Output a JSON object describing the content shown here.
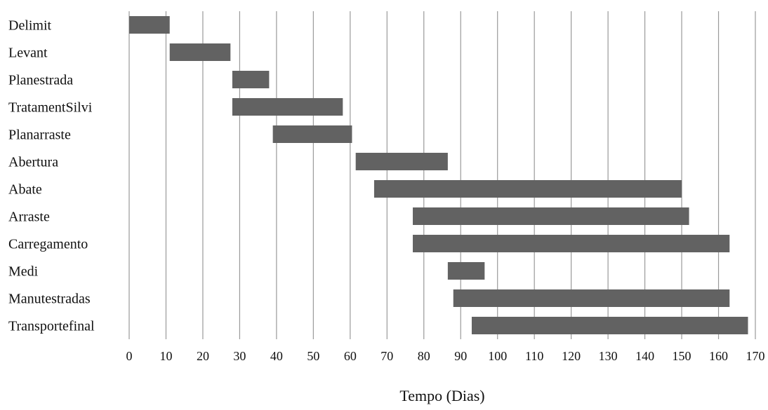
{
  "chart_data": {
    "type": "bar",
    "orientation": "horizontal",
    "subtype": "gantt",
    "title": "",
    "xlabel": "Tempo (Dias)",
    "ylabel": "",
    "xlim": [
      0,
      170
    ],
    "x_ticks": [
      0,
      10,
      20,
      30,
      40,
      50,
      60,
      70,
      80,
      90,
      100,
      110,
      120,
      130,
      140,
      150,
      160,
      170
    ],
    "grid": "vertical",
    "legend": "none",
    "bar_color": "#626262",
    "categories": [
      "Delimit",
      "Levant",
      "Planestrada",
      "TratamentSilvi",
      "Planarraste",
      "Abertura",
      "Abate",
      "Arraste",
      "Carregamento",
      "Medi",
      "Manutestradas",
      "Transportefinal"
    ],
    "tasks": [
      {
        "name": "Delimit",
        "start": 0,
        "end": 11
      },
      {
        "name": "Levant",
        "start": 11,
        "end": 27.5
      },
      {
        "name": "Planestrada",
        "start": 28,
        "end": 38
      },
      {
        "name": "TratamentSilvi",
        "start": 28,
        "end": 58
      },
      {
        "name": "Planarraste",
        "start": 39,
        "end": 60.5
      },
      {
        "name": "Abertura",
        "start": 61.5,
        "end": 86.5
      },
      {
        "name": "Abate",
        "start": 66.5,
        "end": 150
      },
      {
        "name": "Arraste",
        "start": 77,
        "end": 152
      },
      {
        "name": "Carregamento",
        "start": 77,
        "end": 163
      },
      {
        "name": "Medi",
        "start": 86.5,
        "end": 96.5
      },
      {
        "name": "Manutestradas",
        "start": 88,
        "end": 163
      },
      {
        "name": "Transportefinal",
        "start": 93,
        "end": 168
      }
    ]
  }
}
